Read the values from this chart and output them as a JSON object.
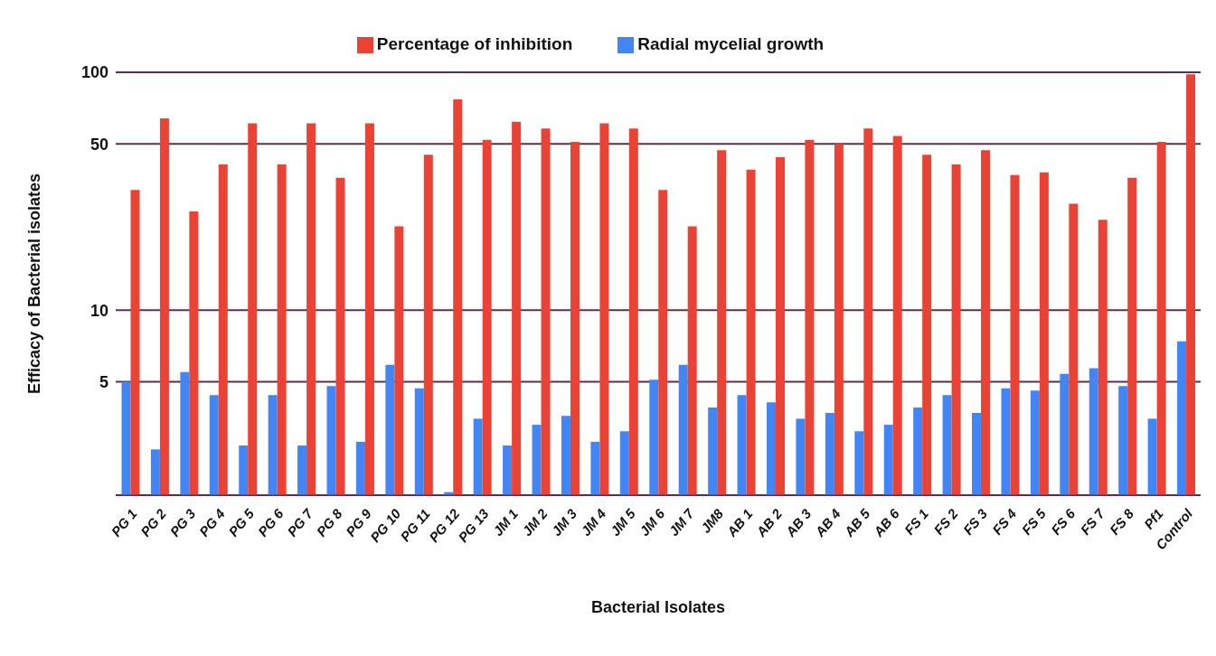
{
  "chart_data": {
    "type": "bar",
    "xlabel": "Bacterial Isolates",
    "ylabel": "Efficacy of Bacterial isolates",
    "categories": [
      "PG 1",
      "PG 2",
      "PG 3",
      "PG 4",
      "PG 5",
      "PG 6",
      "PG 7",
      "PG 8",
      "PG 9",
      "PG 10",
      "PG 11",
      "PG 12",
      "PG 13",
      "JM 1",
      "JM 2",
      "JM 3",
      "JM 4",
      "JM 5",
      "JM 6",
      "JM 7",
      "JM8",
      "AB 1",
      "AB 2",
      "AB 3",
      "AB 4",
      "AB 5",
      "AB 6",
      "FS 1",
      "FS 2",
      "FS 3",
      "FS 4",
      "FS 5",
      "FS 6",
      "FS 7",
      "FS 8",
      "Pf1",
      "Control"
    ],
    "series": [
      {
        "name": "Radial mycelial growth",
        "color": "#4285f4",
        "values": [
          5.0,
          2.6,
          5.5,
          4.4,
          2.7,
          4.4,
          2.7,
          4.8,
          2.8,
          5.9,
          4.7,
          1.72,
          3.5,
          2.7,
          3.3,
          3.6,
          2.8,
          3.1,
          5.1,
          5.9,
          3.9,
          4.4,
          4.1,
          3.5,
          3.7,
          3.1,
          3.3,
          3.9,
          4.4,
          3.7,
          4.7,
          4.6,
          5.4,
          5.7,
          4.8,
          3.5,
          7.4
        ]
      },
      {
        "name": "Percentage of inhibition",
        "color": "#ea4335",
        "values": [
          32,
          64,
          26,
          41,
          61,
          41,
          61,
          36,
          61,
          22.5,
          45,
          77,
          52,
          62,
          58,
          51,
          61,
          58,
          32,
          22.5,
          47,
          39,
          44,
          52,
          50,
          58,
          54,
          45,
          41,
          47,
          37,
          38,
          28,
          24,
          36,
          51,
          98
        ]
      }
    ],
    "log": "y",
    "ylim": [
      1.67,
      100
    ],
    "yticks": [
      5,
      10,
      50,
      100
    ],
    "grid": "y",
    "legend": "top"
  }
}
